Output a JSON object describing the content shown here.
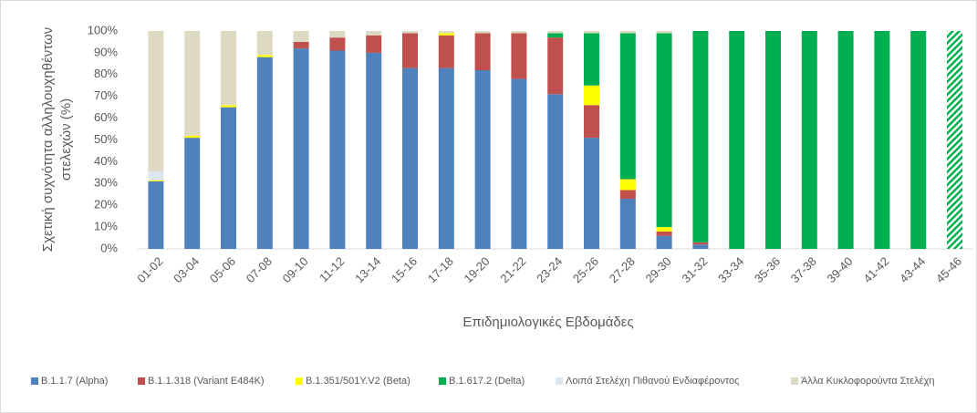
{
  "chart_data": {
    "type": "stacked_bar",
    "ylabel": [
      "Σχετική συχνότητα αλληλουχηθέντων",
      "στελεχών (%)"
    ],
    "xlabel": "Επιδημιολογικές Εβδομάδες",
    "categories": [
      "01-02",
      "03-04",
      "05-06",
      "07-08",
      "09-10",
      "11-12",
      "13-14",
      "15-16",
      "17-18",
      "19-20",
      "21-22",
      "23-24",
      "25-26",
      "27-28",
      "29-30",
      "31-32",
      "33-34",
      "35-36",
      "37-38",
      "39-40",
      "41-42",
      "43-44",
      "45-46"
    ],
    "series": [
      {
        "name": "B.1.1.7 (Alpha)",
        "color": "#4f81bd",
        "values": [
          31,
          51,
          65,
          88,
          92,
          91,
          90,
          83,
          83,
          82,
          78,
          71,
          51,
          23,
          6,
          2,
          0,
          0,
          0,
          0,
          0,
          0,
          0
        ]
      },
      {
        "name": "B.1.1.318 (Variant E484K)",
        "color": "#c0504d",
        "values": [
          0,
          0,
          0,
          0,
          3,
          6,
          8,
          16,
          15,
          17,
          21,
          26,
          15,
          4,
          2,
          1,
          0,
          0,
          0,
          0,
          0,
          0,
          0
        ]
      },
      {
        "name": "B.1.351/501Y.V2 (Beta)",
        "color": "#ffff00",
        "values": [
          0.5,
          1,
          1,
          1,
          0,
          0,
          0,
          0,
          1,
          0,
          0,
          0,
          9,
          5,
          2,
          0,
          0,
          0,
          0,
          0,
          0,
          0,
          0
        ]
      },
      {
        "name": "B.1.617.2 (Delta)",
        "color": "#00b050",
        "values": [
          0,
          0,
          0,
          0,
          0,
          0,
          0,
          0,
          0,
          0,
          0,
          2,
          24,
          67,
          89,
          97,
          100,
          100,
          100,
          100,
          100,
          100,
          100
        ]
      },
      {
        "name": "Λοιπά Στελέχη Πιθανού Ενδιαφέροντος",
        "color": "#dce6f2",
        "values": [
          4,
          0,
          0,
          0,
          0,
          0,
          0,
          0,
          0,
          0,
          0,
          0,
          0,
          0,
          0,
          0,
          0,
          0,
          0,
          0,
          0,
          0,
          0
        ]
      },
      {
        "name": "Άλλα Κυκλοφορούντα Στελέχη",
        "color": "#ddd9c3",
        "values": [
          64.5,
          48,
          34,
          11,
          5,
          3,
          2,
          1,
          1,
          1,
          1,
          1,
          1,
          1,
          1,
          0,
          0,
          0,
          0,
          0,
          0,
          0,
          0
        ]
      }
    ],
    "hatched_indices": [
      22
    ],
    "ylim": [
      0,
      100
    ],
    "yticks": [
      {
        "value": 0,
        "label": "0%"
      },
      {
        "value": 10,
        "label": "10%"
      },
      {
        "value": 20,
        "label": "20%"
      },
      {
        "value": 30,
        "label": "30%"
      },
      {
        "value": 40,
        "label": "40%"
      },
      {
        "value": 50,
        "label": "50%"
      },
      {
        "value": 60,
        "label": "60%"
      },
      {
        "value": 70,
        "label": "70%"
      },
      {
        "value": 80,
        "label": "80%"
      },
      {
        "value": 90,
        "label": "90%"
      },
      {
        "value": 100,
        "label": "100%"
      }
    ],
    "grid": false,
    "legend": "bottom"
  }
}
